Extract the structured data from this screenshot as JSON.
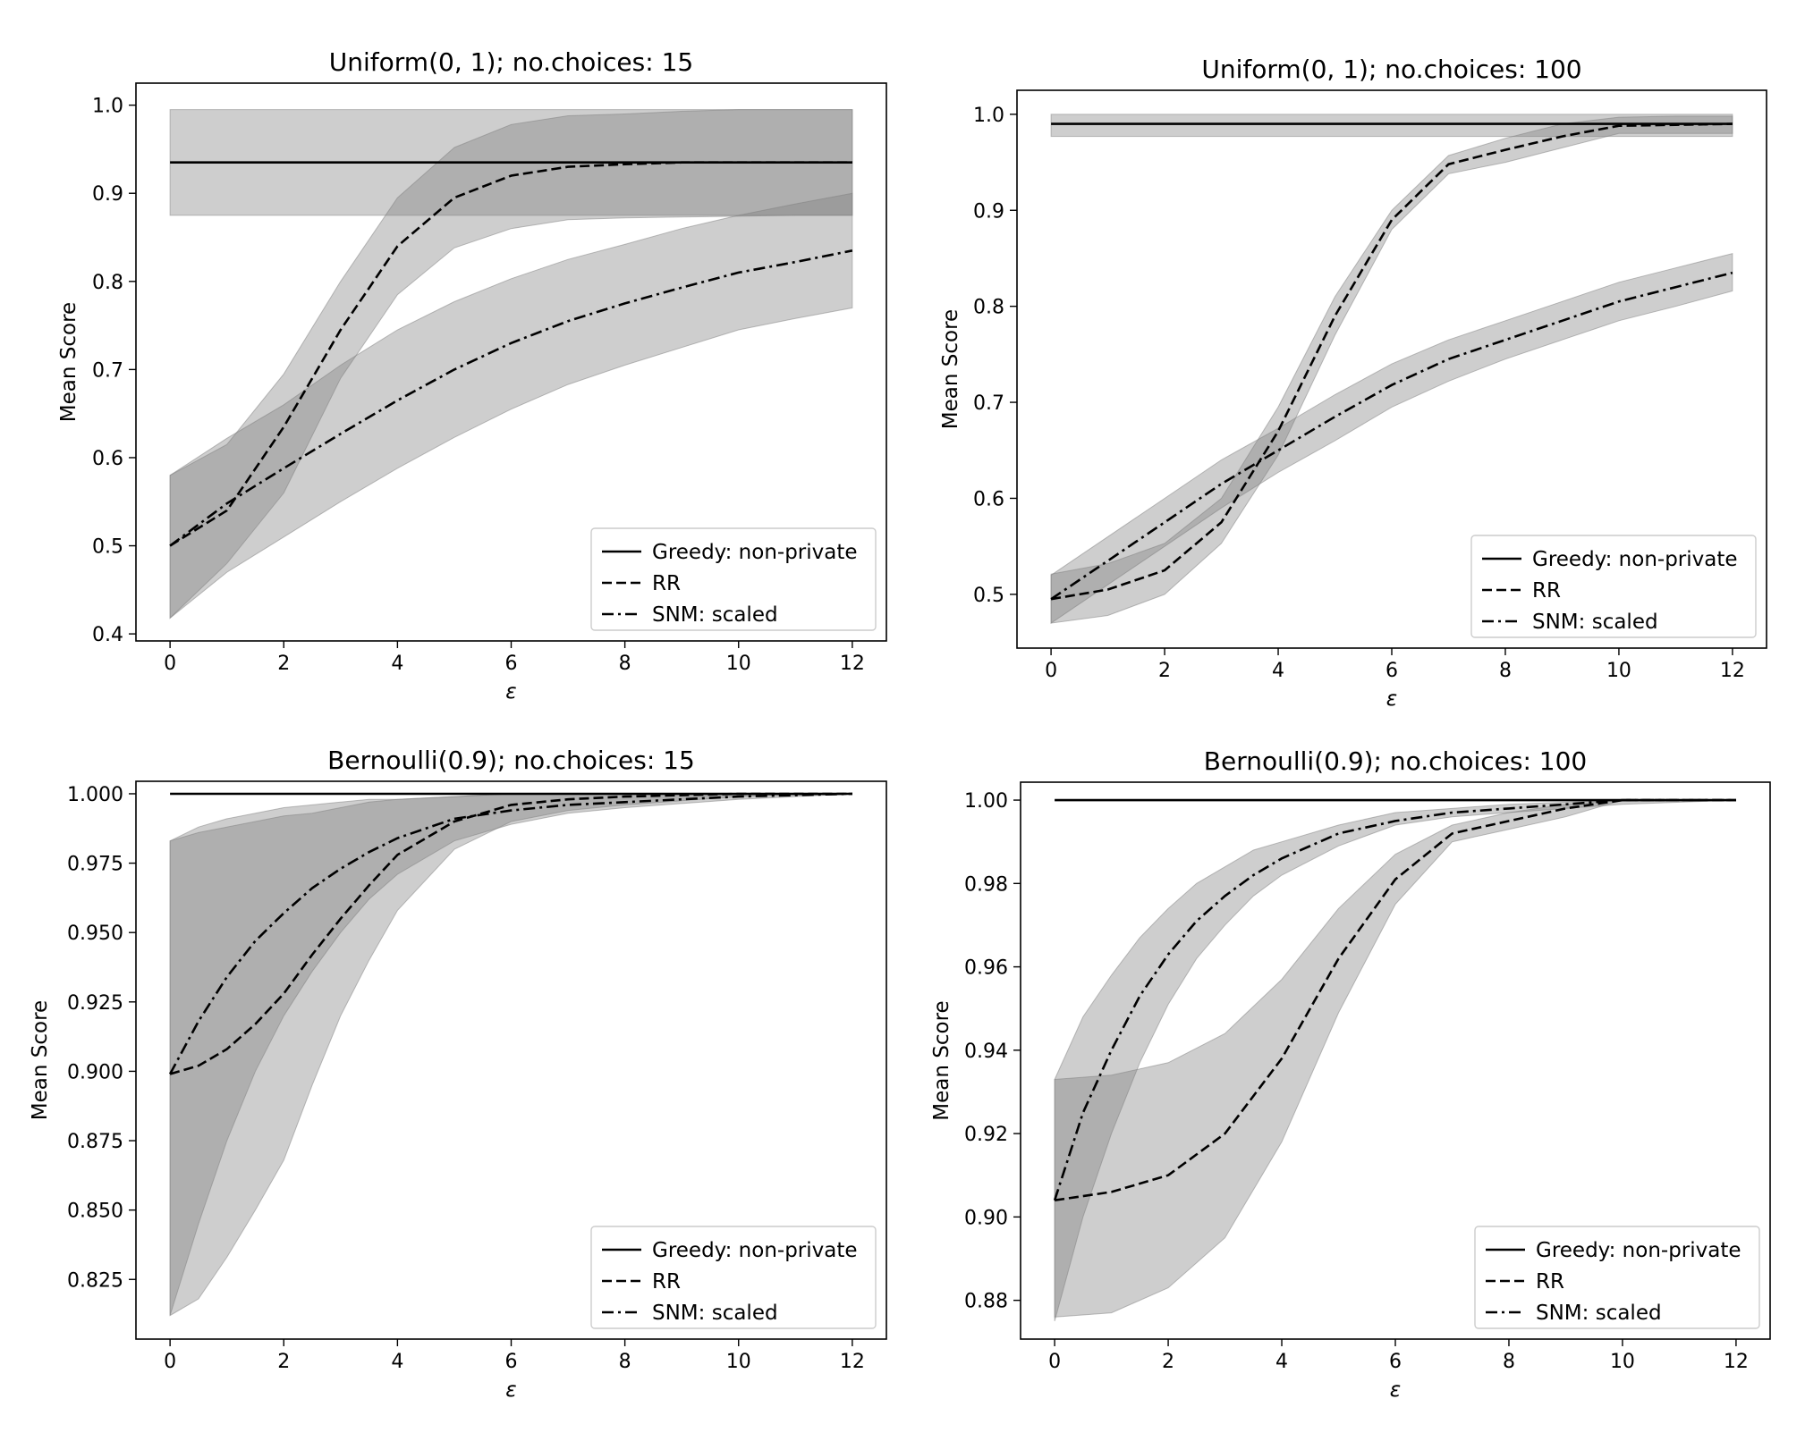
{
  "chart_data": [
    {
      "type": "line",
      "title": "Uniform(0, 1); no.choices: 15",
      "xlabel": "ε",
      "ylabel": "Mean Score",
      "xlim": [
        -0.6,
        12.6
      ],
      "ylim": [
        0.392,
        1.025
      ],
      "xticks": [
        0,
        2,
        4,
        6,
        8,
        10,
        12
      ],
      "yticks": [
        0.4,
        0.5,
        0.6,
        0.7,
        0.8,
        0.9,
        1.0
      ],
      "ytick_labels": [
        "0.4",
        "0.5",
        "0.6",
        "0.7",
        "0.8",
        "0.9",
        "1.0"
      ],
      "xtick_labels": [
        "0",
        "2",
        "4",
        "6",
        "8",
        "10",
        "12"
      ],
      "legend_position": "lower-right",
      "series": [
        {
          "name": "Greedy: non-private",
          "style": "solid",
          "x": [
            0,
            12
          ],
          "y": [
            0.935,
            0.935
          ],
          "lower": [
            0.875,
            0.875
          ],
          "upper": [
            0.995,
            0.995
          ]
        },
        {
          "name": "RR",
          "style": "dashed",
          "x": [
            0,
            1,
            2,
            3,
            4,
            5,
            6,
            7,
            8,
            9,
            10,
            11,
            12
          ],
          "y": [
            0.5,
            0.54,
            0.635,
            0.745,
            0.84,
            0.895,
            0.92,
            0.93,
            0.933,
            0.935,
            0.935,
            0.935,
            0.935
          ],
          "lower": [
            0.418,
            0.48,
            0.56,
            0.69,
            0.785,
            0.838,
            0.86,
            0.87,
            0.872,
            0.873,
            0.874,
            0.875,
            0.875
          ],
          "upper": [
            0.58,
            0.615,
            0.695,
            0.8,
            0.895,
            0.952,
            0.978,
            0.988,
            0.99,
            0.993,
            0.995,
            0.995,
            0.995
          ]
        },
        {
          "name": "SNM: scaled",
          "style": "dashdot",
          "x": [
            0,
            1,
            2,
            3,
            4,
            5,
            6,
            7,
            8,
            9,
            10,
            11,
            12
          ],
          "y": [
            0.5,
            0.548,
            0.588,
            0.627,
            0.665,
            0.7,
            0.73,
            0.755,
            0.775,
            0.793,
            0.81,
            0.822,
            0.835
          ],
          "lower": [
            0.418,
            0.47,
            0.51,
            0.55,
            0.588,
            0.623,
            0.655,
            0.683,
            0.705,
            0.725,
            0.745,
            0.758,
            0.77
          ],
          "upper": [
            0.58,
            0.622,
            0.66,
            0.705,
            0.745,
            0.777,
            0.803,
            0.825,
            0.842,
            0.86,
            0.875,
            0.888,
            0.9
          ]
        }
      ]
    },
    {
      "type": "line",
      "title": "Uniform(0, 1); no.choices: 100",
      "xlabel": "ε",
      "ylabel": "Mean Score",
      "xlim": [
        -0.6,
        12.6
      ],
      "ylim": [
        0.444,
        1.025
      ],
      "xticks": [
        0,
        2,
        4,
        6,
        8,
        10,
        12
      ],
      "yticks": [
        0.5,
        0.6,
        0.7,
        0.8,
        0.9,
        1.0
      ],
      "ytick_labels": [
        "0.5",
        "0.6",
        "0.7",
        "0.8",
        "0.9",
        "1.0"
      ],
      "xtick_labels": [
        "0",
        "2",
        "4",
        "6",
        "8",
        "10",
        "12"
      ],
      "legend_position": "lower-right",
      "series": [
        {
          "name": "Greedy: non-private",
          "style": "solid",
          "x": [
            0,
            12
          ],
          "y": [
            0.99,
            0.99
          ],
          "lower": [
            0.977,
            0.977
          ],
          "upper": [
            1.0,
            1.0
          ]
        },
        {
          "name": "RR",
          "style": "dashed",
          "x": [
            0,
            1,
            2,
            3,
            4,
            5,
            6,
            7,
            8,
            9,
            10,
            11,
            12
          ],
          "y": [
            0.495,
            0.505,
            0.525,
            0.575,
            0.67,
            0.79,
            0.89,
            0.948,
            0.963,
            0.977,
            0.988,
            0.989,
            0.99
          ],
          "lower": [
            0.47,
            0.478,
            0.5,
            0.553,
            0.645,
            0.77,
            0.88,
            0.938,
            0.95,
            0.965,
            0.98,
            0.98,
            0.98
          ],
          "upper": [
            0.521,
            0.532,
            0.553,
            0.6,
            0.695,
            0.81,
            0.9,
            0.957,
            0.975,
            0.99,
            0.997,
            0.998,
            0.998
          ]
        },
        {
          "name": "SNM: scaled",
          "style": "dashdot",
          "x": [
            0,
            1,
            2,
            3,
            4,
            5,
            6,
            7,
            8,
            9,
            10,
            11,
            12
          ],
          "y": [
            0.495,
            0.535,
            0.575,
            0.615,
            0.65,
            0.685,
            0.718,
            0.745,
            0.765,
            0.785,
            0.805,
            0.82,
            0.835
          ],
          "lower": [
            0.47,
            0.51,
            0.55,
            0.59,
            0.627,
            0.66,
            0.695,
            0.722,
            0.745,
            0.765,
            0.785,
            0.8,
            0.816
          ],
          "upper": [
            0.52,
            0.56,
            0.6,
            0.64,
            0.673,
            0.708,
            0.74,
            0.765,
            0.785,
            0.805,
            0.825,
            0.84,
            0.855
          ]
        }
      ]
    },
    {
      "type": "line",
      "title": "Bernoulli(0.9); no.choices: 15",
      "xlabel": "ε",
      "ylabel": "Mean Score",
      "xlim": [
        -0.6,
        12.6
      ],
      "ylim": [
        0.8035,
        1.0045
      ],
      "xticks": [
        0,
        2,
        4,
        6,
        8,
        10,
        12
      ],
      "yticks": [
        0.825,
        0.85,
        0.875,
        0.9,
        0.925,
        0.95,
        0.975,
        1.0
      ],
      "ytick_labels": [
        "0.825",
        "0.850",
        "0.875",
        "0.900",
        "0.925",
        "0.950",
        "0.975",
        "1.000"
      ],
      "xtick_labels": [
        "0",
        "2",
        "4",
        "6",
        "8",
        "10",
        "12"
      ],
      "legend_position": "lower-right",
      "series": [
        {
          "name": "Greedy: non-private",
          "style": "solid",
          "x": [
            0,
            12
          ],
          "y": [
            1.0,
            1.0
          ],
          "lower": [
            1.0,
            1.0
          ],
          "upper": [
            1.0,
            1.0
          ]
        },
        {
          "name": "RR",
          "style": "dashed",
          "x": [
            0,
            0.5,
            1,
            1.5,
            2,
            2.5,
            3,
            3.5,
            4,
            5,
            6,
            7,
            8,
            10,
            12
          ],
          "y": [
            0.899,
            0.902,
            0.908,
            0.917,
            0.928,
            0.942,
            0.955,
            0.967,
            0.978,
            0.99,
            0.996,
            0.998,
            0.999,
            1.0,
            1.0
          ],
          "lower": [
            0.812,
            0.818,
            0.833,
            0.85,
            0.868,
            0.895,
            0.92,
            0.94,
            0.958,
            0.98,
            0.99,
            0.994,
            0.996,
            0.999,
            1.0
          ],
          "upper": [
            0.983,
            0.986,
            0.988,
            0.99,
            0.992,
            0.993,
            0.995,
            0.997,
            0.998,
            0.999,
            1.0,
            1.0,
            1.0,
            1.0,
            1.0
          ]
        },
        {
          "name": "SNM: scaled",
          "style": "dashdot",
          "x": [
            0,
            0.5,
            1,
            1.5,
            2,
            2.5,
            3,
            3.5,
            4,
            5,
            6,
            7,
            8,
            10,
            12
          ],
          "y": [
            0.899,
            0.918,
            0.934,
            0.947,
            0.957,
            0.966,
            0.973,
            0.979,
            0.984,
            0.991,
            0.994,
            0.996,
            0.997,
            0.999,
            1.0
          ],
          "lower": [
            0.812,
            0.845,
            0.875,
            0.9,
            0.92,
            0.936,
            0.95,
            0.962,
            0.971,
            0.983,
            0.989,
            0.993,
            0.995,
            0.998,
            1.0
          ],
          "upper": [
            0.983,
            0.988,
            0.991,
            0.993,
            0.995,
            0.996,
            0.997,
            0.998,
            0.998,
            0.999,
            1.0,
            1.0,
            1.0,
            1.0,
            1.0
          ]
        }
      ]
    },
    {
      "type": "line",
      "title": "Bernoulli(0.9); no.choices: 100",
      "xlabel": "ε",
      "ylabel": "Mean Score",
      "xlim": [
        -0.6,
        12.6
      ],
      "ylim": [
        0.8707,
        1.0043
      ],
      "xticks": [
        0,
        2,
        4,
        6,
        8,
        10,
        12
      ],
      "yticks": [
        0.88,
        0.9,
        0.92,
        0.94,
        0.96,
        0.98,
        1.0
      ],
      "ytick_labels": [
        "0.88",
        "0.90",
        "0.92",
        "0.94",
        "0.96",
        "0.98",
        "1.00"
      ],
      "xtick_labels": [
        "0",
        "2",
        "4",
        "6",
        "8",
        "10",
        "12"
      ],
      "legend_position": "lower-right",
      "series": [
        {
          "name": "Greedy: non-private",
          "style": "solid",
          "x": [
            0,
            12
          ],
          "y": [
            1.0,
            1.0
          ],
          "lower": [
            1.0,
            1.0
          ],
          "upper": [
            1.0,
            1.0
          ]
        },
        {
          "name": "RR",
          "style": "dashed",
          "x": [
            0,
            1,
            2,
            3,
            4,
            5,
            6,
            7,
            8,
            9,
            10,
            11,
            12
          ],
          "y": [
            0.904,
            0.906,
            0.91,
            0.92,
            0.938,
            0.962,
            0.981,
            0.992,
            0.995,
            0.998,
            1.0,
            1.0,
            1.0
          ],
          "lower": [
            0.876,
            0.877,
            0.883,
            0.895,
            0.918,
            0.949,
            0.975,
            0.99,
            0.993,
            0.996,
            1.0,
            1.0,
            1.0
          ],
          "upper": [
            0.933,
            0.934,
            0.937,
            0.944,
            0.957,
            0.974,
            0.987,
            0.994,
            0.997,
            0.999,
            1.0,
            1.0,
            1.0
          ]
        },
        {
          "name": "SNM: scaled",
          "style": "dashdot",
          "x": [
            0,
            0.5,
            1,
            1.5,
            2,
            2.5,
            3,
            3.5,
            4,
            5,
            6,
            7,
            8,
            10,
            12
          ],
          "y": [
            0.904,
            0.925,
            0.94,
            0.953,
            0.963,
            0.971,
            0.977,
            0.982,
            0.986,
            0.992,
            0.995,
            0.997,
            0.998,
            1.0,
            1.0
          ],
          "lower": [
            0.875,
            0.9,
            0.92,
            0.937,
            0.951,
            0.962,
            0.97,
            0.977,
            0.982,
            0.989,
            0.994,
            0.996,
            0.997,
            0.999,
            1.0
          ],
          "upper": [
            0.933,
            0.948,
            0.958,
            0.967,
            0.974,
            0.98,
            0.984,
            0.988,
            0.99,
            0.994,
            0.997,
            0.998,
            0.999,
            1.0,
            1.0
          ]
        }
      ]
    }
  ]
}
